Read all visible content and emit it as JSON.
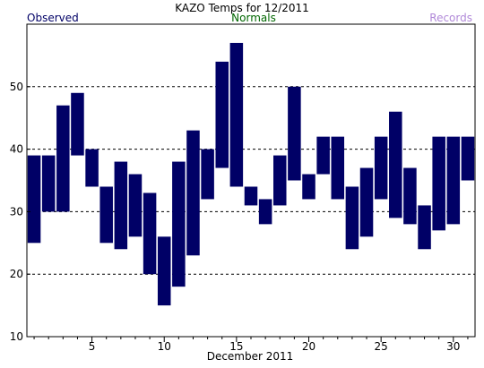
{
  "chart_data": {
    "type": "bar",
    "title": "KAZO Temps for  12/2011",
    "legend": {
      "observed": "Observed",
      "normals": "Normals",
      "records": "Records"
    },
    "xlabel": "December 2011",
    "ylabel": "",
    "x": [
      1,
      2,
      3,
      4,
      5,
      6,
      7,
      8,
      9,
      10,
      11,
      12,
      13,
      14,
      15,
      16,
      17,
      18,
      19,
      20,
      21,
      22,
      23,
      24,
      25,
      26,
      27,
      28,
      29,
      30,
      31
    ],
    "low": [
      25,
      30,
      30,
      39,
      34,
      25,
      24,
      26,
      20,
      15,
      18,
      23,
      32,
      37,
      34,
      31,
      28,
      31,
      35,
      32,
      36,
      32,
      24,
      26,
      32,
      29,
      28,
      24,
      27,
      28,
      35
    ],
    "high": [
      39,
      39,
      47,
      49,
      40,
      34,
      38,
      36,
      33,
      26,
      38,
      43,
      40,
      54,
      57,
      34,
      32,
      39,
      50,
      36,
      42,
      42,
      34,
      37,
      42,
      46,
      37,
      31,
      42,
      42,
      42
    ],
    "ylim": [
      10,
      60
    ],
    "xlim": [
      0.5,
      31.5
    ],
    "yticks": [
      10,
      20,
      30,
      40,
      50
    ],
    "xtick_labels": [
      5,
      10,
      15,
      20,
      25,
      30
    ],
    "grid": true,
    "colors": {
      "observed": "#000066",
      "normals": "#006600",
      "records": "#b088d8",
      "grid": "#000000",
      "axis": "#000000"
    }
  }
}
